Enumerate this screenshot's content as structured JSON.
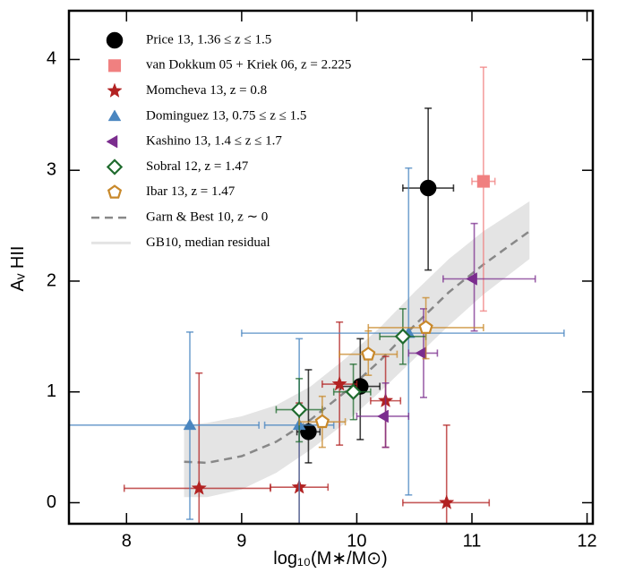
{
  "chart_data": {
    "type": "scatter",
    "xlabel": "log₁₀(M∗/M⊙)",
    "ylabel": "Aᵥ HII",
    "xlim": [
      7.5,
      12.05
    ],
    "ylim": [
      -0.19,
      4.44
    ],
    "xticks": [
      8,
      9,
      10,
      11,
      12
    ],
    "yticks": [
      0,
      1,
      2,
      3,
      4
    ],
    "series": [
      {
        "name": "Price 13, 1.36 ≤ z ≤ 1.5",
        "type": "scatter",
        "marker": "circle",
        "filled": true,
        "color": "#000000",
        "x": [
          9.58,
          10.03,
          10.62
        ],
        "y": [
          0.64,
          1.05,
          2.84
        ],
        "xerr": [
          [
            0.1,
            0.1
          ],
          [
            0.17,
            0.17
          ],
          [
            0.22,
            0.22
          ]
        ],
        "yerr": [
          [
            0.28,
            0.56
          ],
          [
            0.48,
            0.43
          ],
          [
            0.74,
            0.72
          ]
        ]
      },
      {
        "name": "van Dokkum 05 + Kriek 06, z = 2.225",
        "type": "scatter",
        "marker": "square",
        "filled": true,
        "color": "#f08080",
        "x": [
          11.1
        ],
        "y": [
          2.9
        ],
        "xerr": [
          [
            0.1,
            0.1
          ]
        ],
        "yerr": [
          [
            1.17,
            1.03
          ]
        ]
      },
      {
        "name": "Momcheva 13, z = 0.8",
        "type": "scatter",
        "marker": "star",
        "filled": true,
        "color": "#b22222",
        "x": [
          8.63,
          9.5,
          9.85,
          10.25,
          10.78
        ],
        "y": [
          0.13,
          0.14,
          1.07,
          0.92,
          0.0
        ],
        "xerr": [
          [
            0.65,
            0.62
          ],
          [
            0.25,
            0.25
          ],
          [
            0.15,
            0.15
          ],
          [
            0.13,
            0.13
          ],
          [
            0.38,
            0.37
          ]
        ],
        "yerr": [
          [
            0.5,
            1.04
          ],
          [
            0.5,
            0.76
          ],
          [
            0.55,
            0.56
          ],
          [
            0.42,
            0.4
          ],
          [
            0.5,
            0.7
          ]
        ]
      },
      {
        "name": "Dominguez 13, 0.75 ≤ z ≤ 1.5",
        "type": "scatter",
        "marker": "triangle-up",
        "filled": true,
        "color": "#4a86c0",
        "x": [
          8.55,
          9.5,
          10.45
        ],
        "y": [
          0.7,
          0.7,
          1.53
        ],
        "xerr": [
          [
            1.3,
            0.6
          ],
          [
            0.3,
            0.3
          ],
          [
            1.45,
            1.35
          ]
        ],
        "yerr": [
          [
            0.85,
            0.84
          ],
          [
            0.9,
            0.78
          ],
          [
            1.46,
            1.49
          ]
        ]
      },
      {
        "name": "Kashino 13, 1.4 ≤ z ≤ 1.7",
        "type": "scatter",
        "marker": "triangle-left",
        "filled": true,
        "color": "#7b2d8e",
        "x": [
          10.25,
          10.58,
          11.02
        ],
        "y": [
          0.78,
          1.35,
          2.02
        ],
        "xerr": [
          [
            0.25,
            0.2
          ],
          [
            0.13,
            0.12
          ],
          [
            0.27,
            0.53
          ]
        ],
        "yerr": [
          [
            0.28,
            0.3
          ],
          [
            0.4,
            0.4
          ],
          [
            0.47,
            0.5
          ]
        ]
      },
      {
        "name": "Sobral 12, z = 1.47",
        "type": "scatter",
        "marker": "diamond",
        "filled": false,
        "color": "#1f6b2e",
        "x": [
          9.5,
          9.97,
          10.4
        ],
        "y": [
          0.84,
          1.0,
          1.5
        ],
        "xerr": [
          [
            0.2,
            0.2
          ],
          [
            0.17,
            0.15
          ],
          [
            0.2,
            0.2
          ]
        ],
        "yerr": [
          [
            0.29,
            0.28
          ],
          [
            0.25,
            0.25
          ],
          [
            0.25,
            0.25
          ]
        ]
      },
      {
        "name": "Ibar 13, z = 1.47",
        "type": "scatter",
        "marker": "pentagon",
        "filled": false,
        "color": "#c8882a",
        "x": [
          9.7,
          10.1,
          10.6
        ],
        "y": [
          0.73,
          1.34,
          1.58
        ],
        "xerr": [
          [
            0.2,
            0.2
          ],
          [
            0.25,
            0.25
          ],
          [
            0.5,
            0.5
          ]
        ],
        "yerr": [
          [
            0.23,
            0.23
          ],
          [
            0.19,
            0.21
          ],
          [
            0.28,
            0.27
          ]
        ]
      },
      {
        "name": "Garn & Best 10, z ∼ 0",
        "type": "line",
        "color": "#888888",
        "x": [
          8.5,
          8.7,
          9.0,
          9.3,
          9.6,
          9.9,
          10.2,
          10.5,
          10.8,
          11.1,
          11.5
        ],
        "y": [
          0.37,
          0.36,
          0.42,
          0.55,
          0.75,
          1.0,
          1.28,
          1.6,
          1.9,
          2.15,
          2.45
        ]
      },
      {
        "name": "GB10, median residual",
        "type": "band",
        "color": "#e4e4e4",
        "x": [
          8.5,
          8.7,
          9.0,
          9.3,
          9.6,
          9.9,
          10.2,
          10.5,
          10.8,
          11.1,
          11.5
        ],
        "lower": [
          0.05,
          0.05,
          0.12,
          0.27,
          0.48,
          0.72,
          1.0,
          1.3,
          1.6,
          1.88,
          2.2
        ],
        "upper": [
          0.7,
          0.72,
          0.78,
          0.88,
          1.05,
          1.3,
          1.58,
          1.9,
          2.2,
          2.45,
          2.72
        ]
      }
    ]
  }
}
